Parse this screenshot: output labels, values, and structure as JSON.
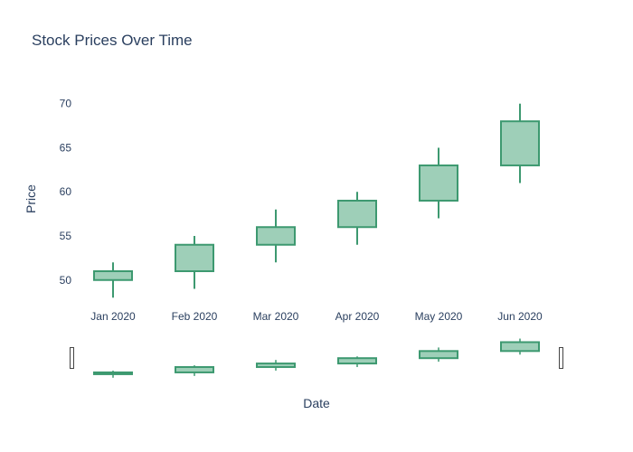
{
  "chart_data": {
    "type": "candlestick",
    "title": "Stock Prices Over Time",
    "xlabel": "Date",
    "ylabel": "Price",
    "categories": [
      "Jan 2020",
      "Feb 2020",
      "Mar 2020",
      "Apr 2020",
      "May 2020",
      "Jun 2020"
    ],
    "open": [
      50,
      51,
      54,
      56,
      59,
      63
    ],
    "high": [
      52,
      55,
      58,
      60,
      65,
      70
    ],
    "low": [
      48,
      49,
      52,
      54,
      57,
      61
    ],
    "close": [
      51,
      54,
      56,
      59,
      63,
      68
    ],
    "yticks": [
      50,
      55,
      60,
      65,
      70
    ],
    "ylim": [
      46.9,
      71.3
    ],
    "rangeslider": true,
    "colors": {
      "increasing_line": "#3d9970",
      "increasing_fill": "#9ecfb8",
      "text": "#2a3f5f"
    }
  }
}
